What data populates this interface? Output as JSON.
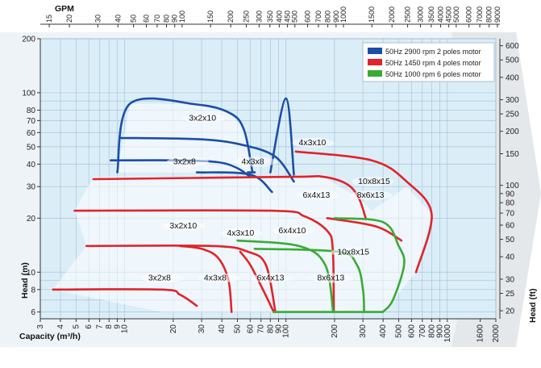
{
  "chart_data": {
    "type": "line",
    "top_axis_label": "GPM",
    "xlabel": "Capacity (m³/h)",
    "ylabel_left": "Head (m)",
    "ylabel_right": "Head (ft)",
    "x_scale": "log",
    "y_scale": "log",
    "xlim": [
      3,
      2000
    ],
    "ylim": [
      5.5,
      200
    ],
    "grid": true,
    "legend_position": "top-right",
    "colors": {
      "plot_bg": "#dbeef8",
      "grid": "#a8c4d8",
      "outer_bg": "#eef3f7",
      "chevron": "#e4e8eb"
    },
    "x_ticks": [
      "3",
      "4",
      "5",
      "6",
      "7",
      "8",
      "9",
      "10",
      "20",
      "30",
      "40",
      "50",
      "60",
      "70",
      "80",
      "90",
      "100",
      "200",
      "300",
      "400",
      "500",
      "600",
      "700",
      "800",
      "900",
      "1000",
      "1600",
      "2000"
    ],
    "y_ticks_left": [
      "6",
      "8",
      "10",
      "20",
      "30",
      "40",
      "50",
      "60",
      "70",
      "80",
      "100",
      "200"
    ],
    "gpm_ticks": [
      "15",
      "20",
      "30",
      "40",
      "50",
      "60",
      "70",
      "80",
      "90",
      "100",
      "150",
      "200",
      "250",
      "300",
      "350",
      "400",
      "450",
      "500",
      "600",
      "700",
      "800",
      "900",
      "1000",
      "1500",
      "2000",
      "2500",
      "3000",
      "3500",
      "4000",
      "4500",
      "5000",
      "6000",
      "7000",
      "8000",
      "9000"
    ],
    "ft_ticks": [
      "20",
      "25",
      "30",
      "40",
      "50",
      "60",
      "70",
      "80",
      "90",
      "100",
      "150",
      "200",
      "250",
      "300",
      "400",
      "500",
      "600"
    ],
    "legend": [
      {
        "label": "50Hz 2900 rpm 2 poles motor",
        "color": "#1b4ea6"
      },
      {
        "label": "50Hz 1450 rpm 4 poles motor",
        "color": "#e0242a"
      },
      {
        "label": "50Hz 1000 rpm 6 poles motor",
        "color": "#3aaa35"
      }
    ],
    "series": [
      {
        "name": "50Hz 2900 rpm 2 poles motor",
        "color": "#1b4ea6",
        "curves": [
          {
            "label": "3x2x10",
            "points": [
              [
                9,
                36
              ],
              [
                10.8,
                87
              ],
              [
                28,
                86
              ],
              [
                45,
                77
              ],
              [
                55,
                62
              ],
              [
                62,
                36
              ]
            ]
          },
          {
            "label": "4x3x10",
            "points": [
              [
                9.3,
                56
              ],
              [
                30,
                55
              ],
              [
                55,
                51
              ],
              [
                86,
                44
              ],
              [
                112,
                32
              ]
            ]
          },
          {
            "label": "3x2x8",
            "points": [
              [
                58,
                36
              ],
              [
                64,
                36
              ]
            ]
          },
          {
            "label": "4x3x8",
            "points": [
              [
                8.2,
                42
              ],
              [
                22,
                42
              ],
              [
                38,
                41
              ],
              [
                50,
                38
              ],
              [
                60,
                34
              ]
            ]
          },
          {
            "label": "",
            "points": [
              [
                28,
                36
              ],
              [
                60,
                35
              ],
              [
                82,
                28
              ]
            ]
          },
          {
            "label": "",
            "points": [
              [
                80,
                36
              ],
              [
                100,
                93
              ],
              [
                112,
                35
              ]
            ]
          }
        ]
      },
      {
        "name": "50Hz 1450 rpm 4 poles motor",
        "color": "#e0242a",
        "curves": [
          {
            "label": "3x2x10",
            "points": [
              [
                5.8,
                14
              ],
              [
                35,
                14
              ],
              [
                58,
                13
              ],
              [
                75,
                11
              ],
              [
                86,
                6
              ]
            ]
          },
          {
            "label": "4x3x10",
            "points": [
              [
                4.9,
                22
              ],
              [
                80,
                22
              ],
              [
                130,
                20.5
              ],
              [
                180,
                17
              ],
              [
                195,
                13.5
              ],
              [
                198,
                6
              ]
            ]
          },
          {
            "label": "6x4x13",
            "points": [
              [
                6.4,
                33
              ],
              [
                108,
                34
              ],
              [
                170,
                34
              ],
              [
                238,
                31
              ],
              [
                282,
                26
              ],
              [
                312,
                20
              ]
            ]
          },
          {
            "label": "8x6x13",
            "points": [
              [
                115,
                47
              ],
              [
                340,
                42
              ],
              [
                560,
                32
              ],
              [
                800,
                21
              ],
              [
                640,
                10
              ]
            ]
          },
          {
            "label": "10x8x15",
            "points": [
              [
                180,
                20
              ],
              [
                360,
                18
              ],
              [
                520,
                15
              ]
            ]
          },
          {
            "label": "3x2x8",
            "points": [
              [
                3.6,
                8
              ],
              [
                17,
                8
              ],
              [
                22,
                7.5
              ],
              [
                28,
                6.5
              ]
            ]
          },
          {
            "label": "4x3x8",
            "points": [
              [
                22,
                14
              ],
              [
                30,
                13.5
              ],
              [
                38,
                12
              ],
              [
                44,
                9
              ],
              [
                46,
                6
              ]
            ]
          },
          {
            "label": "",
            "points": [
              [
                52,
                13
              ],
              [
                60,
                11
              ],
              [
                72,
                8
              ],
              [
                84,
                6
              ]
            ]
          }
        ]
      },
      {
        "name": "50Hz 1000 rpm 6 poles motor",
        "color": "#3aaa35",
        "curves": [
          {
            "label": "6x4x13",
            "points": [
              [
                50,
                15
              ],
              [
                120,
                14
              ],
              [
                175,
                11
              ],
              [
                196,
                6
              ]
            ]
          },
          {
            "label": "8x6x13",
            "points": [
              [
                64,
                13.5
              ],
              [
                210,
                13
              ],
              [
                275,
                11
              ],
              [
                300,
                8
              ],
              [
                305,
                6
              ]
            ]
          },
          {
            "label": "10x8x15",
            "points": [
              [
                200,
                20
              ],
              [
                400,
                19
              ],
              [
                500,
                14
              ],
              [
                540,
                11
              ],
              [
                460,
                7
              ],
              [
                398,
                6
              ]
            ]
          },
          {
            "label": "",
            "points": [
              [
                84,
                6
              ],
              [
                398,
                6
              ]
            ]
          }
        ]
      }
    ],
    "curve_labels": [
      {
        "text": "3x2x10",
        "x": 25,
        "y": 70
      },
      {
        "text": "4x3x10",
        "x": 120,
        "y": 51
      },
      {
        "text": "3x2x8",
        "x": 20,
        "y": 40
      },
      {
        "text": "4x3x8",
        "x": 53,
        "y": 40
      },
      {
        "text": "10x8x15",
        "x": 280,
        "y": 31
      },
      {
        "text": "6x4x13",
        "x": 127,
        "y": 26
      },
      {
        "text": "8x6x13",
        "x": 275,
        "y": 26
      },
      {
        "text": "3x2x10",
        "x": 19,
        "y": 17.5
      },
      {
        "text": "4x3x10",
        "x": 43,
        "y": 16
      },
      {
        "text": "6x4x10",
        "x": 90,
        "y": 16.5
      },
      {
        "text": "10x8x15",
        "x": 208,
        "y": 12.5
      },
      {
        "text": "3x2x8",
        "x": 14,
        "y": 9
      },
      {
        "text": "4x3x8",
        "x": 31,
        "y": 9
      },
      {
        "text": "6x4x13",
        "x": 66,
        "y": 9
      },
      {
        "text": "8x6x13",
        "x": 156,
        "y": 9
      }
    ]
  }
}
